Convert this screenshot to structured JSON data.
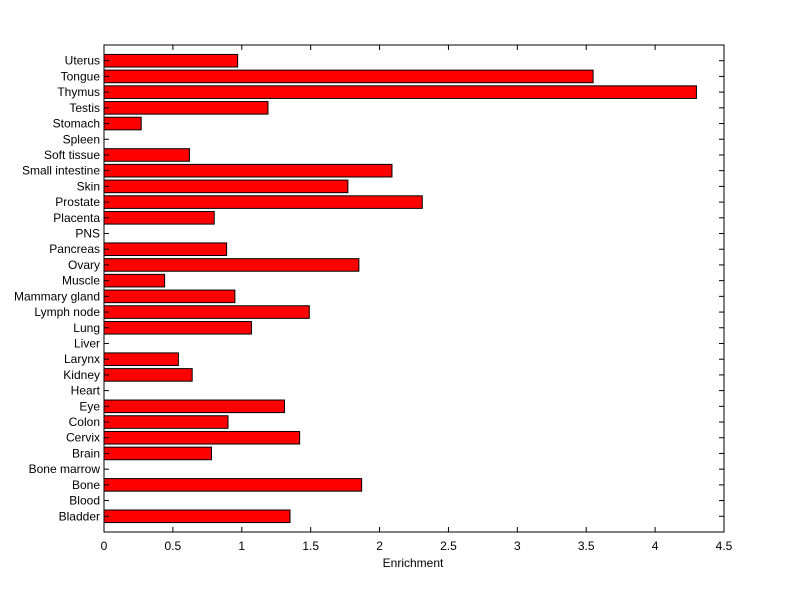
{
  "chart_data": {
    "type": "bar",
    "orientation": "horizontal",
    "title": "",
    "xlabel": "Enrichment",
    "ylabel": "",
    "xlim": [
      0,
      4.5
    ],
    "xticks": [
      "0",
      "0.5",
      "1",
      "1.5",
      "2",
      "2.5",
      "3",
      "3.5",
      "4",
      "4.5"
    ],
    "grid": false,
    "legend": "none",
    "bar_color": "#ff0000",
    "categories": [
      "Bladder",
      "Blood",
      "Bone",
      "Bone marrow",
      "Brain",
      "Cervix",
      "Colon",
      "Eye",
      "Heart",
      "Kidney",
      "Larynx",
      "Liver",
      "Lung",
      "Lymph node",
      "Mammary gland",
      "Muscle",
      "Ovary",
      "Pancreas",
      "PNS",
      "Placenta",
      "Prostate",
      "Skin",
      "Small intestine",
      "Soft tissue",
      "Spleen",
      "Stomach",
      "Testis",
      "Thymus",
      "Tongue",
      "Uterus"
    ],
    "values": [
      1.35,
      0,
      1.87,
      0,
      0.78,
      1.42,
      0.9,
      1.31,
      0,
      0.64,
      0.54,
      0,
      1.07,
      1.49,
      0.95,
      0.44,
      1.85,
      0.89,
      0,
      0.8,
      2.31,
      1.77,
      2.09,
      0.62,
      0,
      0.27,
      1.19,
      4.3,
      3.55,
      0.97
    ]
  }
}
